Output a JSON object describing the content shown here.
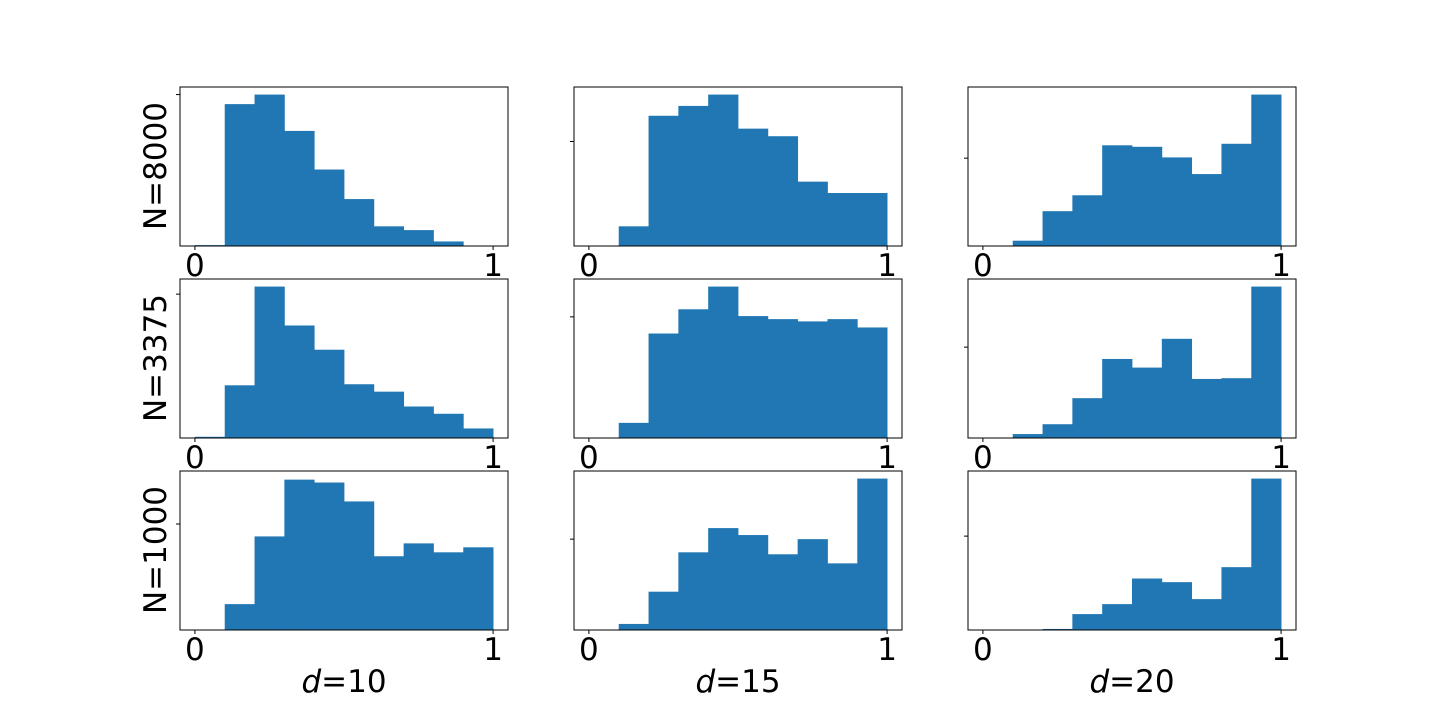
{
  "chart_data": {
    "type": "histogram-grid",
    "bar_color": "#2077b4",
    "columns": [
      "d=10",
      "d=15",
      "d=20"
    ],
    "column_labels": [
      {
        "var": "d",
        "value": "=10"
      },
      {
        "var": "d",
        "value": "=15"
      },
      {
        "var": "d",
        "value": "=20"
      }
    ],
    "rows": [
      "N=8000",
      "N=3375",
      "N=1000"
    ],
    "xlim": [
      -0.05,
      1.05
    ],
    "xticks": [
      0,
      1
    ],
    "xtick_labels": [
      "0",
      "1"
    ],
    "bin_edges": [
      0,
      0.1,
      0.2,
      0.3,
      0.4,
      0.5,
      0.6,
      0.7,
      0.8,
      0.9,
      1.0
    ],
    "panels": [
      {
        "row": 0,
        "col": 0,
        "ylim": [
          0,
          1.05
        ],
        "ytick": 1.0,
        "values": [
          0.006,
          0.937,
          1.0,
          0.76,
          0.505,
          0.31,
          0.13,
          0.105,
          0.03,
          0
        ]
      },
      {
        "row": 0,
        "col": 1,
        "ylim": [
          0,
          1.05
        ],
        "ytick": 0.69,
        "values": [
          0,
          0.13,
          0.86,
          0.925,
          1.0,
          0.775,
          0.725,
          0.425,
          0.35,
          0.35
        ]
      },
      {
        "row": 0,
        "col": 2,
        "ylim": [
          0,
          1.05
        ],
        "ytick": 0.58,
        "values": [
          0,
          0.035,
          0.23,
          0.335,
          0.665,
          0.655,
          0.585,
          0.475,
          0.675,
          1.0
        ]
      },
      {
        "row": 1,
        "col": 0,
        "ylim": [
          0,
          1.05
        ],
        "ytick": 0.95,
        "values": [
          0.008,
          0.348,
          1.0,
          0.743,
          0.583,
          0.355,
          0.306,
          0.208,
          0.16,
          0.063
        ]
      },
      {
        "row": 1,
        "col": 1,
        "ylim": [
          0,
          1.05
        ],
        "ytick": 0.8,
        "values": [
          0,
          0.1,
          0.69,
          0.85,
          1.0,
          0.805,
          0.785,
          0.77,
          0.785,
          0.73
        ]
      },
      {
        "row": 1,
        "col": 2,
        "ylim": [
          0,
          1.05
        ],
        "ytick": 0.6,
        "values": [
          0,
          0.026,
          0.091,
          0.263,
          0.522,
          0.465,
          0.655,
          0.39,
          0.395,
          1.0
        ]
      },
      {
        "row": 2,
        "col": 0,
        "ylim": [
          0,
          1.05
        ],
        "ytick": 0.7,
        "values": [
          0,
          0.171,
          0.618,
          0.993,
          0.974,
          0.849,
          0.487,
          0.572,
          0.513,
          0.546
        ]
      },
      {
        "row": 2,
        "col": 1,
        "ylim": [
          0,
          1.05
        ],
        "ytick": 0.6,
        "values": [
          0,
          0.04,
          0.253,
          0.513,
          0.673,
          0.627,
          0.5,
          0.6,
          0.44,
          1.0
        ]
      },
      {
        "row": 2,
        "col": 2,
        "ylim": [
          0,
          1.05
        ],
        "ytick": 0.62,
        "values": [
          0,
          0,
          0.007,
          0.105,
          0.171,
          0.34,
          0.316,
          0.204,
          0.415,
          1.0
        ]
      }
    ]
  }
}
